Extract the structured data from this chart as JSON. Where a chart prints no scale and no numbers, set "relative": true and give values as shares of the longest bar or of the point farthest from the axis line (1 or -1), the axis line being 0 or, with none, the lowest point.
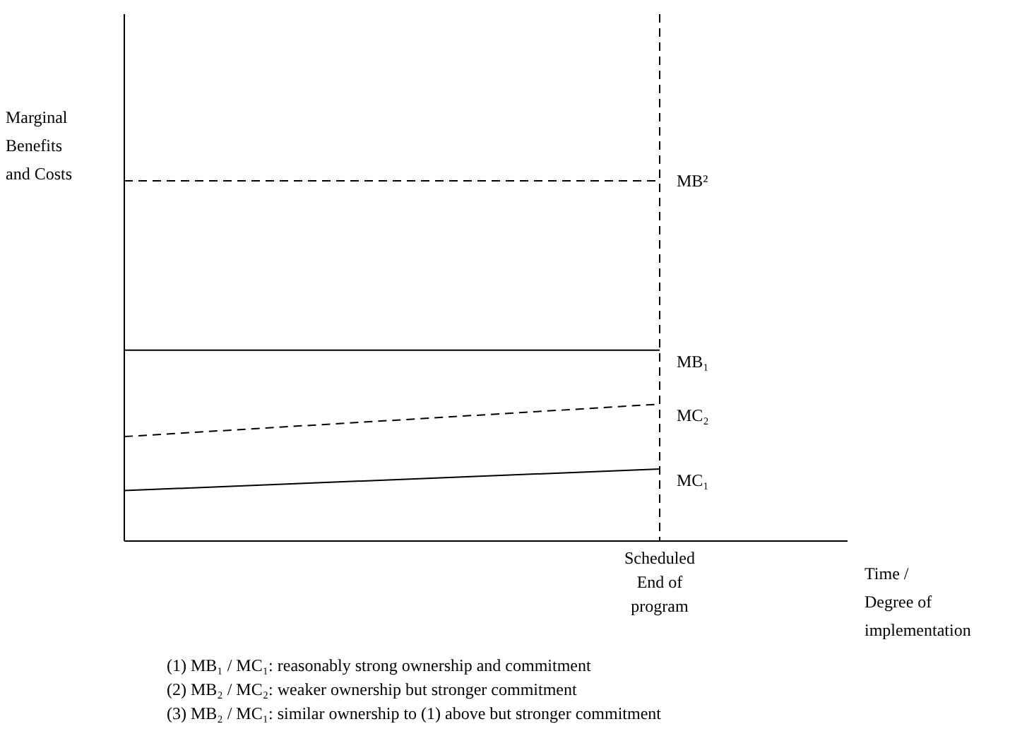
{
  "chart_data": {
    "type": "line",
    "relative": true,
    "ylabel": "Marginal\nBenefits\nand Costs",
    "xlabel": "Time /\nDegree of\nimplementation",
    "categories": [
      null,
      null
    ],
    "series": [
      {
        "name": "MB²",
        "color": "#000000",
        "line_style": "dashed",
        "values": [
          1,
          1
        ]
      },
      {
        "name": "MB₁",
        "color": "#000000",
        "line_style": "solid",
        "values": [
          0.53,
          0.53
        ]
      },
      {
        "name": "MC₂",
        "color": "#000000",
        "line_style": "dashed",
        "values": [
          0.29,
          0.38
        ]
      },
      {
        "name": "MC₁",
        "color": "#000000",
        "line_style": "solid",
        "values": [
          0.14,
          0.2
        ]
      }
    ],
    "ref_lines": [
      {
        "axis": "x",
        "label": "Scheduled\nEnd of\nprogram",
        "line_style": "dashed"
      }
    ],
    "annotations": [
      "(1)    MB₁ / MC₁: reasonably strong ownership and commitment",
      "(2)    MB₂ / MC₂: weaker ownership but stronger commitment",
      "(3)    MB₂ / MC₁: similar ownership to (1) above but stronger commitment"
    ]
  }
}
